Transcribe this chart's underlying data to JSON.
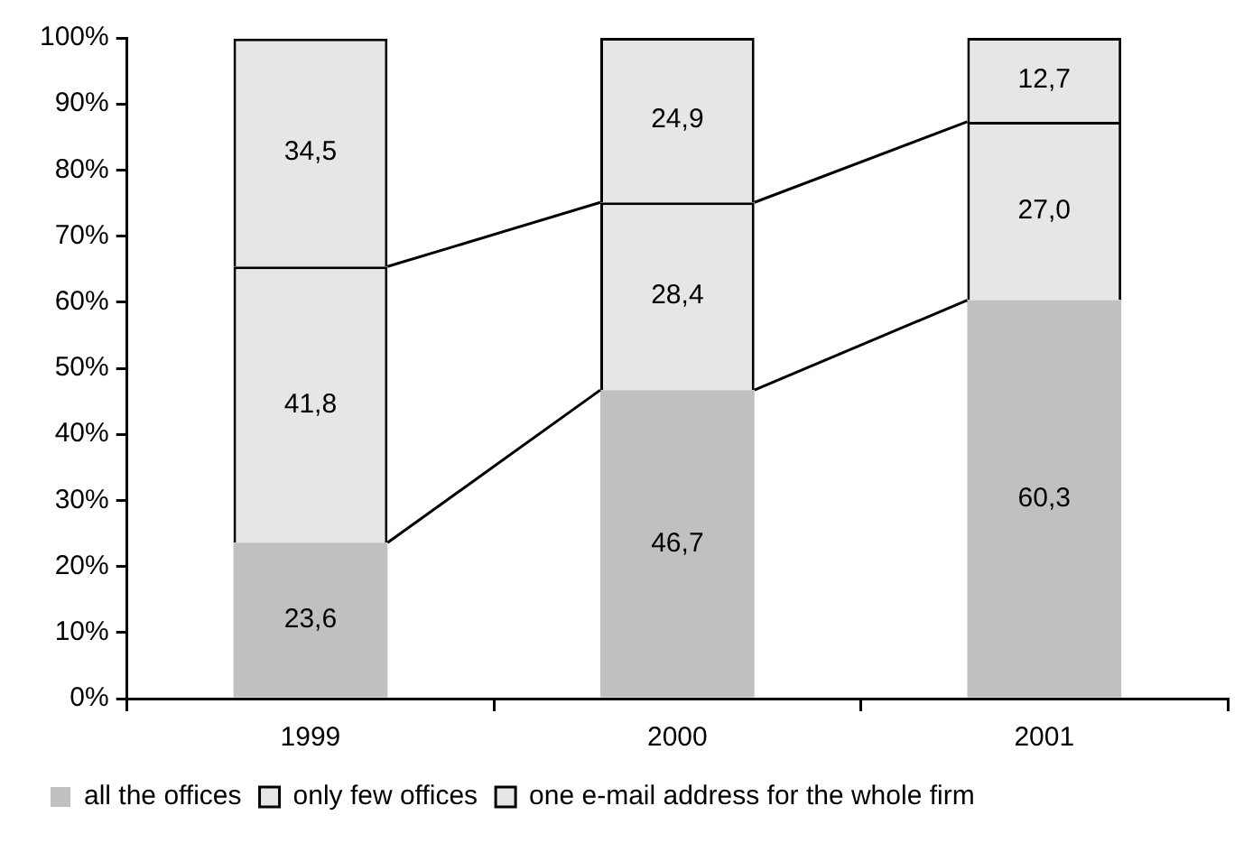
{
  "chart_data": {
    "type": "bar",
    "stacked": true,
    "categories": [
      "1999",
      "2000",
      "2001"
    ],
    "series": [
      {
        "name": "all the offices",
        "color": "#c0c0c0",
        "values": [
          23.6,
          46.7,
          60.3
        ],
        "value_labels": [
          "23,6",
          "46,7",
          "60,3"
        ]
      },
      {
        "name": "only few offices",
        "color": "#e6e6e6",
        "values": [
          41.8,
          28.4,
          27.0
        ],
        "value_labels": [
          "41,8",
          "28,4",
          "27,0"
        ]
      },
      {
        "name": "one e-mail address for the whole firm",
        "color": "#e6e6e6",
        "values": [
          34.5,
          24.9,
          12.7
        ],
        "value_labels": [
          "34,5",
          "24,9",
          "12,7"
        ]
      }
    ],
    "ylim": [
      0,
      100
    ],
    "yticks": [
      {
        "value": 0,
        "label": "0%"
      },
      {
        "value": 10,
        "label": "10%"
      },
      {
        "value": 20,
        "label": "20%"
      },
      {
        "value": 30,
        "label": "30%"
      },
      {
        "value": 40,
        "label": "40%"
      },
      {
        "value": 50,
        "label": "50%"
      },
      {
        "value": 60,
        "label": "60%"
      },
      {
        "value": 70,
        "label": "70%"
      },
      {
        "value": 80,
        "label": "80%"
      },
      {
        "value": 90,
        "label": "90%"
      },
      {
        "value": 100,
        "label": "100%"
      }
    ],
    "grid": false,
    "legend": "bottom"
  }
}
